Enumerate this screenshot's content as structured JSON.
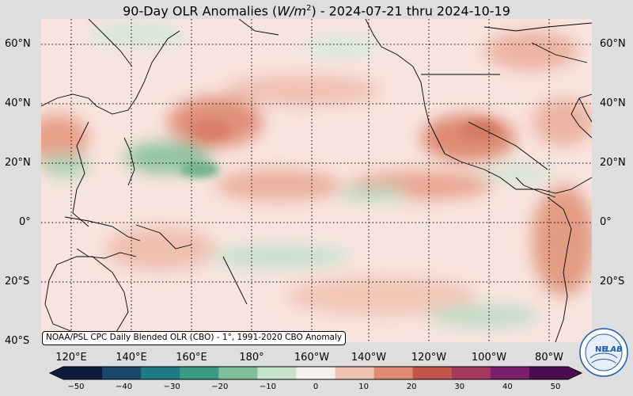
{
  "title": {
    "prefix": "90-Day OLR Anomalies (",
    "unit": "W/m",
    "unit_exp": "2",
    "suffix": ") - 2024-07-21 thru 2024-10-19"
  },
  "map": {
    "lat_labels": [
      "60°N",
      "40°N",
      "20°N",
      "0°",
      "20°S",
      "40°S"
    ],
    "lon_labels": [
      "120°E",
      "140°E",
      "160°E",
      "180°",
      "160°W",
      "140°W",
      "120°W",
      "100°W",
      "80°W"
    ],
    "caption": "NOAA/PSL CPC Daily Blended OLR (CBO) - 1°, 1991-2020 CBO Anomaly",
    "colorbar": {
      "ticks": [
        "−50",
        "−40",
        "−30",
        "−20",
        "−10",
        "0",
        "10",
        "20",
        "30",
        "40",
        "50"
      ],
      "colors": [
        "#0d1b3d",
        "#18476b",
        "#1d7b86",
        "#3a9c86",
        "#7fbf9a",
        "#c8e3cc",
        "#f7f1ee",
        "#f0c4b2",
        "#e08a73",
        "#c4554d",
        "#a53a5c",
        "#7a1f6e",
        "#4a0c4f"
      ]
    },
    "logo": {
      "text_a": "NE",
      "text_b": "LAB",
      "ring": "BOARD OF REGENTS"
    }
  }
}
